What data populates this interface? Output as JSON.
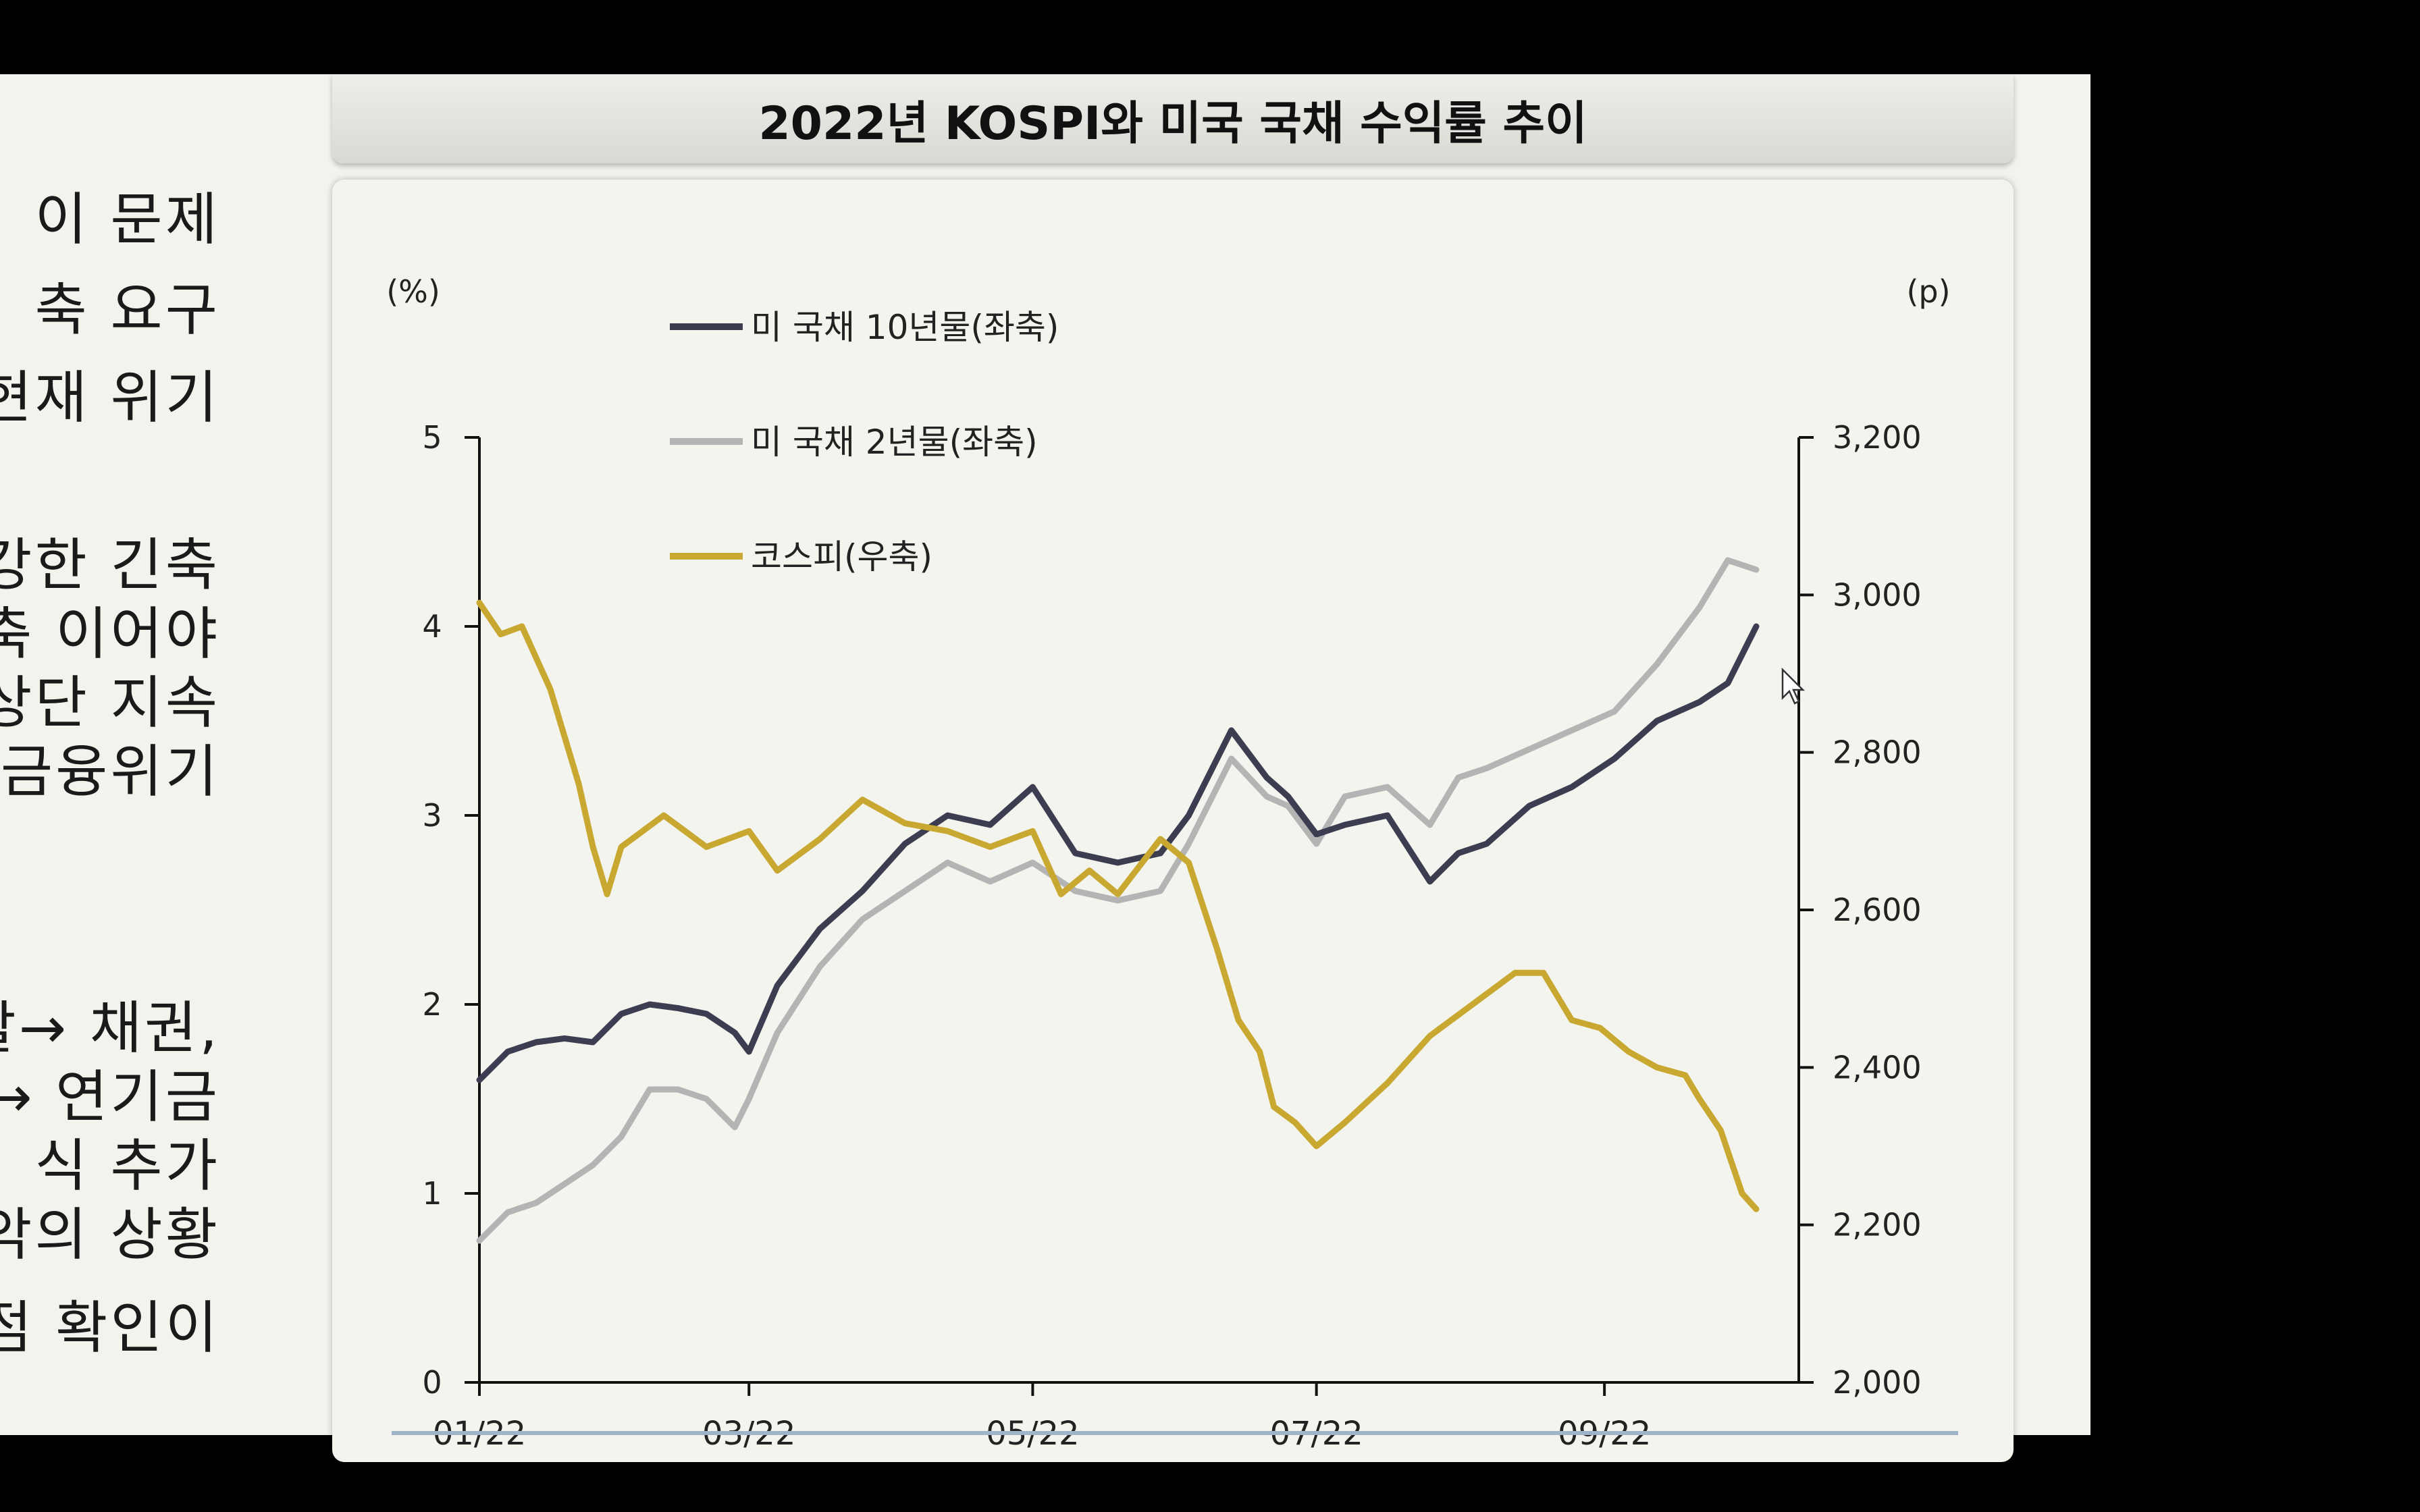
{
  "left_text_lines": [
    "이 문제",
    "축 요구",
    "현재 위기",
    "강한 긴축",
    "축 이어야",
    "상단 지속",
    "금융위기",
    "할→ 채권,",
    "→ 연기금",
    "식 추가",
    "악의 상황",
    "점 확인이"
  ],
  "chart_data": {
    "type": "line",
    "title": "2022년 KOSPI와 미국 국채 수익률 추이",
    "y_left_unit": "(%)",
    "y_right_unit": "(p)",
    "y_left_range": [
      0,
      5
    ],
    "y_right_range": [
      2000,
      3200
    ],
    "y_left_ticks": [
      "0",
      "1",
      "2",
      "3",
      "4",
      "5"
    ],
    "y_right_ticks": [
      "2,000",
      "2,200",
      "2,400",
      "2,600",
      "2,800",
      "3,000",
      "3,200"
    ],
    "x_range": [
      0,
      9.3
    ],
    "x_ticks": [
      {
        "label": "01/22",
        "value": 0
      },
      {
        "label": "03/22",
        "value": 1.9
      },
      {
        "label": "05/22",
        "value": 3.9
      },
      {
        "label": "07/22",
        "value": 5.9
      },
      {
        "label": "09/22",
        "value": 7.93
      }
    ],
    "grid": false,
    "legend_position": "top-left",
    "series": [
      {
        "name": "미 국채 10년물(좌축)",
        "axis": "left",
        "color": "#3d3d52",
        "x": [
          0,
          0.2,
          0.4,
          0.6,
          0.8,
          1.0,
          1.2,
          1.4,
          1.6,
          1.8,
          1.9,
          2.1,
          2.4,
          2.7,
          3.0,
          3.3,
          3.6,
          3.9,
          4.2,
          4.5,
          4.8,
          5.0,
          5.3,
          5.55,
          5.7,
          5.9,
          6.1,
          6.4,
          6.7,
          6.9,
          7.1,
          7.4,
          7.7,
          8.0,
          8.3,
          8.6,
          8.8,
          9.0
        ],
        "y": [
          1.6,
          1.75,
          1.8,
          1.82,
          1.8,
          1.95,
          2.0,
          1.98,
          1.95,
          1.85,
          1.75,
          2.1,
          2.4,
          2.6,
          2.85,
          3.0,
          2.95,
          3.15,
          2.8,
          2.75,
          2.8,
          3.0,
          3.45,
          3.2,
          3.1,
          2.9,
          2.95,
          3.0,
          2.65,
          2.8,
          2.85,
          3.05,
          3.15,
          3.3,
          3.5,
          3.6,
          3.7,
          4.0
        ]
      },
      {
        "name": "미 국채 2년물(좌축)",
        "axis": "left",
        "color": "#b4b4b4",
        "x": [
          0,
          0.2,
          0.4,
          0.6,
          0.8,
          1.0,
          1.2,
          1.4,
          1.6,
          1.8,
          1.9,
          2.1,
          2.4,
          2.7,
          3.0,
          3.3,
          3.6,
          3.9,
          4.2,
          4.5,
          4.8,
          5.0,
          5.3,
          5.55,
          5.7,
          5.9,
          6.1,
          6.4,
          6.7,
          6.9,
          7.1,
          7.4,
          7.7,
          8.0,
          8.3,
          8.6,
          8.8,
          9.0
        ],
        "y": [
          0.75,
          0.9,
          0.95,
          1.05,
          1.15,
          1.3,
          1.55,
          1.55,
          1.5,
          1.35,
          1.5,
          1.85,
          2.2,
          2.45,
          2.6,
          2.75,
          2.65,
          2.75,
          2.6,
          2.55,
          2.6,
          2.85,
          3.3,
          3.1,
          3.05,
          2.85,
          3.1,
          3.15,
          2.95,
          3.2,
          3.25,
          3.35,
          3.45,
          3.55,
          3.8,
          4.1,
          4.35,
          4.3
        ]
      },
      {
        "name": "코스피(우축)",
        "axis": "right",
        "color": "#c8a830",
        "x": [
          0,
          0.15,
          0.3,
          0.5,
          0.7,
          0.8,
          0.9,
          1.0,
          1.3,
          1.6,
          1.9,
          2.1,
          2.4,
          2.7,
          3.0,
          3.3,
          3.6,
          3.9,
          4.1,
          4.3,
          4.5,
          4.8,
          5.0,
          5.2,
          5.35,
          5.5,
          5.6,
          5.75,
          5.9,
          6.1,
          6.4,
          6.7,
          7.0,
          7.3,
          7.5,
          7.7,
          7.9,
          8.1,
          8.3,
          8.5,
          8.6,
          8.75,
          8.9,
          9.0
        ],
        "y": [
          2990,
          2950,
          2960,
          2880,
          2760,
          2680,
          2620,
          2680,
          2720,
          2680,
          2700,
          2650,
          2690,
          2740,
          2710,
          2700,
          2680,
          2700,
          2620,
          2650,
          2620,
          2690,
          2660,
          2550,
          2460,
          2420,
          2350,
          2330,
          2300,
          2330,
          2380,
          2440,
          2480,
          2520,
          2520,
          2460,
          2450,
          2420,
          2400,
          2390,
          2360,
          2320,
          2240,
          2220
        ]
      }
    ]
  }
}
